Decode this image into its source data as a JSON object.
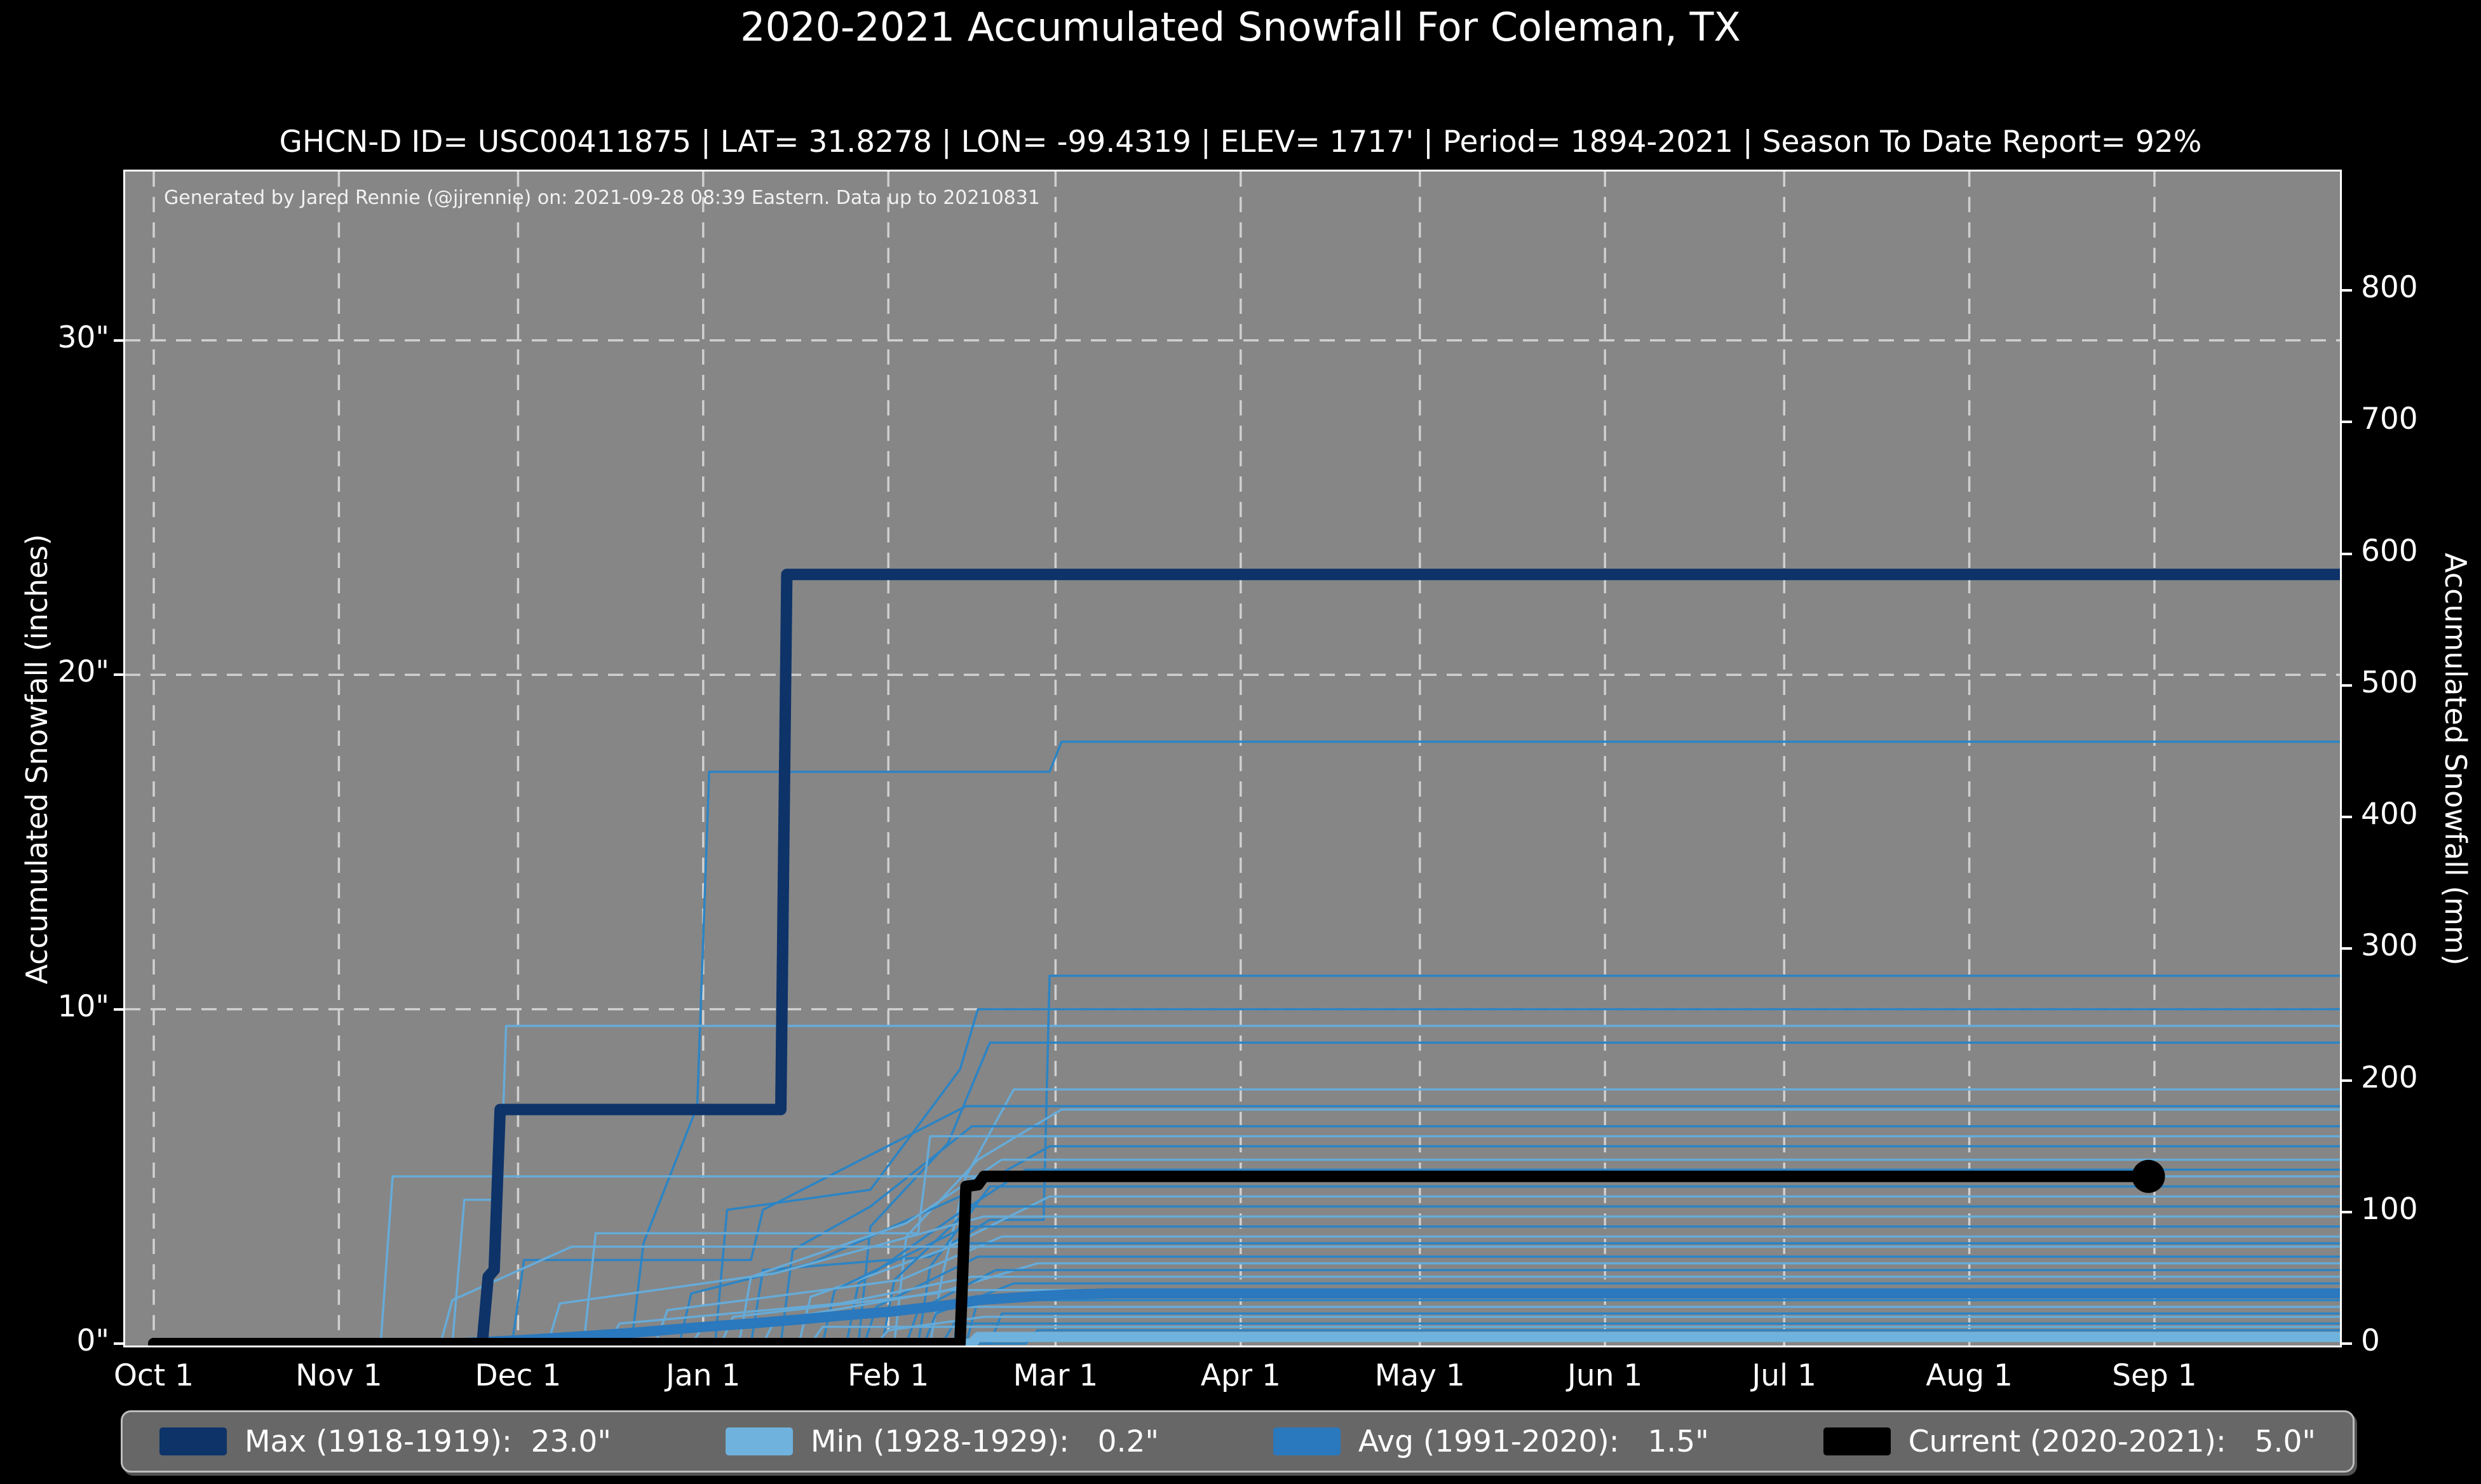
{
  "title": "2020-2021 Accumulated Snowfall For Coleman, TX",
  "subtitle": "GHCN-D ID= USC00411875 | LAT= 31.8278 | LON= -99.4319 | ELEV= 1717' | Period= 1894-2021 | Season To Date Report= 92%",
  "annotation": "Generated by Jared Rennie (@jjrennie) on: 2021-09-28 08:39 Eastern. Data up to 20210831",
  "colors": {
    "page_bg": "#000000",
    "plot_bg": "#868686",
    "grid": "#d0d0d0",
    "plot_border": "#ffffff",
    "text": "#ffffff",
    "legend_bg": "#676767",
    "legend_border": "#bdbdbd",
    "max": "#0d3369",
    "min": "#6fb2dd",
    "avg": "#2a78bd",
    "current": "#000000",
    "season_medium": "#2c84c4",
    "season_light": "#66abd8"
  },
  "legend": [
    {
      "name": "max",
      "label": "Max (1918-1919):  23.0\"",
      "color": "#0d3369"
    },
    {
      "name": "min",
      "label": "Min (1928-1929):   0.2\"",
      "color": "#6fb2dd"
    },
    {
      "name": "avg",
      "label": "Avg (1991-2020):   1.5\"",
      "color": "#2a78bd"
    },
    {
      "name": "current",
      "label": "Current (2020-2021):   5.0\"",
      "color": "#000000"
    }
  ],
  "chart_data": {
    "type": "line",
    "title": "2020-2021 Accumulated Snowfall For Coleman, TX",
    "x_unit": "days since Oct 1",
    "xlabel": "",
    "ylabel_left": "Accumulated Snowfall (inches)",
    "ylabel_right": "Accumulated Snowfall (mm)",
    "ylim_inches": [
      0,
      35.1
    ],
    "ylim_mm": [
      0,
      891
    ],
    "grid": "dashed white, vertical at month starts, horizontal at 10/20/30 inches",
    "legend_position": "bottom, horizontal, 4 entries",
    "x_ticks": {
      "labels": [
        "Oct 1",
        "Nov 1",
        "Dec 1",
        "Jan 1",
        "Feb 1",
        "Mar 1",
        "Apr 1",
        "May 1",
        "Jun 1",
        "Jul 1",
        "Aug 1",
        "Sep 1"
      ],
      "days": [
        0,
        31,
        61,
        92,
        123,
        151,
        182,
        212,
        243,
        273,
        304,
        335
      ]
    },
    "y_ticks_inches": {
      "labels": [
        "0\"",
        "10\"",
        "20\"",
        "30\""
      ],
      "values": [
        0,
        10,
        20,
        30
      ]
    },
    "y_ticks_mm": {
      "values": [
        0,
        100,
        200,
        300,
        400,
        500,
        600,
        700,
        800
      ]
    },
    "series": [
      {
        "name": "Max (1918-1919)",
        "total_inches": 23.0,
        "color_key": "max",
        "width": 18,
        "points": [
          [
            0,
            0
          ],
          [
            55,
            0
          ],
          [
            56,
            2.0
          ],
          [
            57,
            2.2
          ],
          [
            58,
            7.0
          ],
          [
            105,
            7.0
          ],
          [
            106,
            23.0
          ],
          [
            368,
            23.0
          ]
        ]
      },
      {
        "name": "Min (1928-1929)",
        "total_inches": 0.2,
        "color_key": "min",
        "width": 16,
        "points": [
          [
            0,
            0
          ],
          [
            137,
            0
          ],
          [
            138,
            0.2
          ],
          [
            368,
            0.2
          ]
        ]
      },
      {
        "name": "Avg (1991-2020)",
        "total_inches": 1.5,
        "color_key": "avg",
        "width": 16,
        "points": [
          [
            0,
            0
          ],
          [
            50,
            0
          ],
          [
            55,
            0.05
          ],
          [
            61,
            0.1
          ],
          [
            70,
            0.2
          ],
          [
            80,
            0.32
          ],
          [
            92,
            0.5
          ],
          [
            100,
            0.6
          ],
          [
            108,
            0.72
          ],
          [
            116,
            0.85
          ],
          [
            123,
            0.95
          ],
          [
            128,
            1.05
          ],
          [
            133,
            1.15
          ],
          [
            138,
            1.3
          ],
          [
            143,
            1.36
          ],
          [
            148,
            1.42
          ],
          [
            153,
            1.47
          ],
          [
            160,
            1.5
          ],
          [
            368,
            1.5
          ]
        ]
      },
      {
        "name": "Current (2020-2021)",
        "total_inches": 5.0,
        "color_key": "current",
        "width": 18,
        "end_marker": true,
        "points": [
          [
            0,
            0
          ],
          [
            135,
            0
          ],
          [
            136,
            4.7
          ],
          [
            138,
            4.75
          ],
          [
            139,
            5.0
          ],
          [
            334,
            5.0
          ]
        ]
      }
    ],
    "background_series_note": "thin step lines, one per season 1894-2021, two alternating blues",
    "background_series": [
      {
        "c": "m",
        "pts": [
          [
            0,
            0
          ],
          [
            80,
            0
          ],
          [
            82,
            3.0
          ],
          [
            91,
            7.1
          ],
          [
            93,
            17.1
          ],
          [
            150,
            17.1
          ],
          [
            152,
            18.0
          ],
          [
            368,
            18.0
          ]
        ]
      },
      {
        "c": "l",
        "pts": [
          [
            0,
            0
          ],
          [
            50,
            0
          ],
          [
            52,
            4.3
          ],
          [
            58,
            4.3
          ],
          [
            59,
            9.5
          ],
          [
            368,
            9.5
          ]
        ]
      },
      {
        "c": "m",
        "pts": [
          [
            0,
            0
          ],
          [
            100,
            0
          ],
          [
            102,
            2.2
          ],
          [
            130,
            2.6
          ],
          [
            140,
            3.7
          ],
          [
            149,
            3.7
          ],
          [
            150,
            11.0
          ],
          [
            368,
            11.0
          ]
        ]
      },
      {
        "c": "m",
        "pts": [
          [
            0,
            0
          ],
          [
            94,
            0
          ],
          [
            96,
            4.0
          ],
          [
            120,
            4.6
          ],
          [
            135,
            8.2
          ],
          [
            138,
            10.0
          ],
          [
            368,
            10.0
          ]
        ]
      },
      {
        "c": "m",
        "pts": [
          [
            0,
            0
          ],
          [
            118,
            0
          ],
          [
            120,
            3.5
          ],
          [
            133,
            6.0
          ],
          [
            140,
            9.0
          ],
          [
            368,
            9.0
          ]
        ]
      },
      {
        "c": "l",
        "pts": [
          [
            0,
            0
          ],
          [
            130,
            0
          ],
          [
            132,
            2.0
          ],
          [
            136,
            5.0
          ],
          [
            144,
            7.6
          ],
          [
            368,
            7.6
          ]
        ]
      },
      {
        "c": "m",
        "pts": [
          [
            0,
            0
          ],
          [
            60,
            0
          ],
          [
            62,
            2.5
          ],
          [
            100,
            2.5
          ],
          [
            102,
            4.0
          ],
          [
            136,
            7.1
          ],
          [
            368,
            7.1
          ]
        ]
      },
      {
        "c": "l",
        "pts": [
          [
            0,
            0
          ],
          [
            124,
            0
          ],
          [
            126,
            3.2
          ],
          [
            138,
            5.5
          ],
          [
            152,
            7.0
          ],
          [
            368,
            7.0
          ]
        ]
      },
      {
        "c": "m",
        "pts": [
          [
            0,
            0
          ],
          [
            105,
            0
          ],
          [
            107,
            2.8
          ],
          [
            120,
            4.1
          ],
          [
            137,
            6.5
          ],
          [
            368,
            6.5
          ]
        ]
      },
      {
        "c": "l",
        "pts": [
          [
            0,
            0
          ],
          [
            72,
            0
          ],
          [
            74,
            3.3
          ],
          [
            128,
            3.3
          ],
          [
            130,
            6.2
          ],
          [
            368,
            6.2
          ]
        ]
      },
      {
        "c": "m",
        "pts": [
          [
            0,
            0
          ],
          [
            88,
            0
          ],
          [
            90,
            1.5
          ],
          [
            110,
            2.4
          ],
          [
            135,
            4.4
          ],
          [
            150,
            5.9
          ],
          [
            368,
            5.9
          ]
        ]
      },
      {
        "c": "l",
        "pts": [
          [
            0,
            0
          ],
          [
            98,
            0
          ],
          [
            100,
            2.0
          ],
          [
            126,
            3.6
          ],
          [
            142,
            5.5
          ],
          [
            368,
            5.5
          ]
        ]
      },
      {
        "c": "m",
        "pts": [
          [
            0,
            0
          ],
          [
            116,
            0
          ],
          [
            118,
            1.8
          ],
          [
            134,
            3.8
          ],
          [
            146,
            5.2
          ],
          [
            368,
            5.2
          ]
        ]
      },
      {
        "c": "l",
        "pts": [
          [
            0,
            0
          ],
          [
            38,
            0
          ],
          [
            40,
            5.0
          ],
          [
            368,
            5.0
          ]
        ]
      },
      {
        "c": "m",
        "pts": [
          [
            0,
            0
          ],
          [
            128,
            0
          ],
          [
            130,
            2.3
          ],
          [
            140,
            4.7
          ],
          [
            368,
            4.7
          ]
        ]
      },
      {
        "c": "l",
        "pts": [
          [
            0,
            0
          ],
          [
            108,
            0
          ],
          [
            110,
            1.4
          ],
          [
            132,
            2.8
          ],
          [
            150,
            4.4
          ],
          [
            368,
            4.4
          ]
        ]
      },
      {
        "c": "m",
        "pts": [
          [
            0,
            0
          ],
          [
            122,
            0
          ],
          [
            124,
            1.9
          ],
          [
            137,
            4.1
          ],
          [
            368,
            4.1
          ]
        ]
      },
      {
        "c": "l",
        "pts": [
          [
            0,
            0
          ],
          [
            66,
            0
          ],
          [
            68,
            1.2
          ],
          [
            104,
            2.1
          ],
          [
            139,
            3.8
          ],
          [
            368,
            3.8
          ]
        ]
      },
      {
        "c": "m",
        "pts": [
          [
            0,
            0
          ],
          [
            112,
            0
          ],
          [
            114,
            1.6
          ],
          [
            136,
            3.5
          ],
          [
            368,
            3.5
          ]
        ]
      },
      {
        "c": "l",
        "pts": [
          [
            0,
            0
          ],
          [
            84,
            0
          ],
          [
            86,
            1.0
          ],
          [
            125,
            1.9
          ],
          [
            142,
            3.2
          ],
          [
            368,
            3.2
          ]
        ]
      },
      {
        "c": "m",
        "pts": [
          [
            0,
            0
          ],
          [
            134,
            0
          ],
          [
            136,
            3.0
          ],
          [
            368,
            3.0
          ]
        ]
      },
      {
        "c": "l",
        "pts": [
          [
            0,
            0
          ],
          [
            48,
            0
          ],
          [
            50,
            1.3
          ],
          [
            70,
            2.9
          ],
          [
            368,
            2.9
          ]
        ]
      },
      {
        "c": "m",
        "pts": [
          [
            0,
            0
          ],
          [
            119,
            0
          ],
          [
            121,
            1.1
          ],
          [
            138,
            2.6
          ],
          [
            368,
            2.6
          ]
        ]
      },
      {
        "c": "l",
        "pts": [
          [
            0,
            0
          ],
          [
            95,
            0
          ],
          [
            97,
            0.8
          ],
          [
            131,
            1.5
          ],
          [
            148,
            2.4
          ],
          [
            368,
            2.4
          ]
        ]
      },
      {
        "c": "m",
        "pts": [
          [
            0,
            0
          ],
          [
            126,
            0
          ],
          [
            128,
            1.0
          ],
          [
            141,
            2.2
          ],
          [
            368,
            2.2
          ]
        ]
      },
      {
        "c": "l",
        "pts": [
          [
            0,
            0
          ],
          [
            76,
            0
          ],
          [
            78,
            0.6
          ],
          [
            115,
            1.2
          ],
          [
            137,
            2.0
          ],
          [
            368,
            2.0
          ]
        ]
      },
      {
        "c": "m",
        "pts": [
          [
            0,
            0
          ],
          [
            129,
            0
          ],
          [
            131,
            0.9
          ],
          [
            144,
            1.8
          ],
          [
            368,
            1.8
          ]
        ]
      },
      {
        "c": "l",
        "pts": [
          [
            0,
            0
          ],
          [
            102,
            0
          ],
          [
            104,
            0.7
          ],
          [
            133,
            1.6
          ],
          [
            368,
            1.6
          ]
        ]
      },
      {
        "c": "m",
        "pts": [
          [
            0,
            0
          ],
          [
            136,
            0
          ],
          [
            138,
            1.3
          ],
          [
            368,
            1.3
          ]
        ]
      },
      {
        "c": "l",
        "pts": [
          [
            0,
            0
          ],
          [
            90,
            0
          ],
          [
            92,
            0.5
          ],
          [
            127,
            1.1
          ],
          [
            368,
            1.1
          ]
        ]
      },
      {
        "c": "m",
        "pts": [
          [
            0,
            0
          ],
          [
            140,
            0
          ],
          [
            142,
            0.9
          ],
          [
            368,
            0.9
          ]
        ]
      },
      {
        "c": "l",
        "pts": [
          [
            0,
            0
          ],
          [
            121,
            0
          ],
          [
            123,
            0.4
          ],
          [
            139,
            0.8
          ],
          [
            368,
            0.8
          ]
        ]
      },
      {
        "c": "m",
        "pts": [
          [
            0,
            0
          ],
          [
            132,
            0
          ],
          [
            134,
            0.6
          ],
          [
            368,
            0.6
          ]
        ]
      },
      {
        "c": "l",
        "pts": [
          [
            0,
            0
          ],
          [
            110,
            0
          ],
          [
            112,
            0.5
          ],
          [
            368,
            0.5
          ]
        ]
      },
      {
        "c": "m",
        "pts": [
          [
            0,
            0
          ],
          [
            146,
            0
          ],
          [
            148,
            0.4
          ],
          [
            368,
            0.4
          ]
        ]
      },
      {
        "c": "l",
        "pts": [
          [
            0,
            0
          ],
          [
            137,
            0
          ],
          [
            139,
            0.3
          ],
          [
            368,
            0.3
          ]
        ]
      }
    ]
  }
}
